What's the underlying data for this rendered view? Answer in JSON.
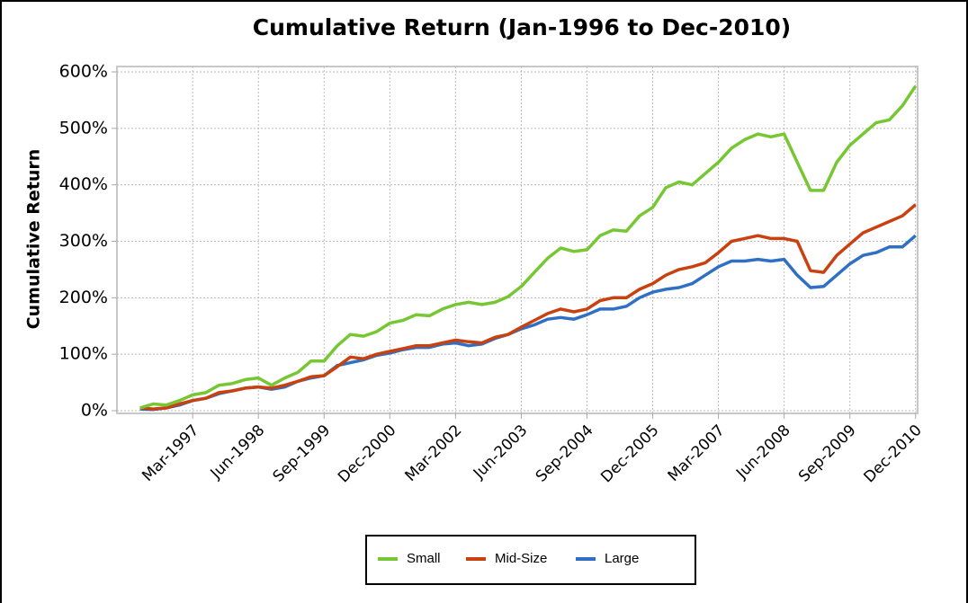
{
  "chart_data": {
    "type": "line",
    "title": "Cumulative Return (Jan-1996 to Dec-2010)",
    "y_label": "Cumulative Return",
    "x": [
      "Mar-1996",
      "Jun-1996",
      "Sep-1996",
      "Dec-1996",
      "Mar-1997",
      "Jun-1997",
      "Sep-1997",
      "Dec-1997",
      "Mar-1998",
      "Jun-1998",
      "Sep-1998",
      "Dec-1998",
      "Mar-1999",
      "Jun-1999",
      "Sep-1999",
      "Dec-1999",
      "Mar-2000",
      "Jun-2000",
      "Sep-2000",
      "Dec-2000",
      "Mar-2001",
      "Jun-2001",
      "Sep-2001",
      "Dec-2001",
      "Mar-2002",
      "Jun-2002",
      "Sep-2002",
      "Dec-2002",
      "Mar-2003",
      "Jun-2003",
      "Sep-2003",
      "Dec-2003",
      "Mar-2004",
      "Jun-2004",
      "Sep-2004",
      "Dec-2004",
      "Mar-2005",
      "Jun-2005",
      "Sep-2005",
      "Dec-2005",
      "Mar-2006",
      "Jun-2006",
      "Sep-2006",
      "Dec-2006",
      "Mar-2007",
      "Jun-2007",
      "Sep-2007",
      "Dec-2007",
      "Mar-2008",
      "Jun-2008",
      "Sep-2008",
      "Dec-2008",
      "Mar-2009",
      "Jun-2009",
      "Sep-2009",
      "Dec-2009",
      "Mar-2010",
      "Jun-2010",
      "Sep-2010",
      "Dec-2010"
    ],
    "xticks": [
      "Mar-1997",
      "Jun-1998",
      "Sep-1999",
      "Dec-2000",
      "Mar-2002",
      "Jun-2003",
      "Sep-2004",
      "Dec-2005",
      "Mar-2007",
      "Jun-2008",
      "Sep-2009",
      "Dec-2010"
    ],
    "series": [
      {
        "name": "Small",
        "color": "#76c733",
        "values": [
          5,
          12,
          10,
          18,
          28,
          32,
          45,
          48,
          55,
          58,
          45,
          58,
          68,
          88,
          88,
          115,
          135,
          132,
          140,
          155,
          160,
          170,
          168,
          180,
          188,
          192,
          188,
          192,
          202,
          220,
          245,
          270,
          288,
          282,
          285,
          310,
          320,
          318,
          345,
          360,
          395,
          405,
          400,
          420,
          440,
          465,
          480,
          490,
          485,
          490,
          440,
          390,
          390,
          440,
          470,
          490,
          510,
          515,
          540,
          575
        ]
      },
      {
        "name": "Mid-Size",
        "color": "#c8410f",
        "values": [
          5,
          3,
          5,
          12,
          18,
          22,
          32,
          35,
          40,
          42,
          40,
          45,
          52,
          60,
          62,
          78,
          95,
          92,
          100,
          105,
          110,
          115,
          115,
          120,
          125,
          122,
          120,
          130,
          135,
          148,
          160,
          172,
          180,
          175,
          180,
          195,
          200,
          200,
          215,
          225,
          240,
          250,
          255,
          262,
          280,
          300,
          305,
          310,
          305,
          305,
          300,
          248,
          245,
          275,
          295,
          315,
          325,
          335,
          345,
          365
        ]
      },
      {
        "name": "Large",
        "color": "#2f6fc4",
        "values": [
          3,
          2,
          5,
          10,
          18,
          22,
          30,
          35,
          40,
          42,
          38,
          42,
          52,
          58,
          62,
          80,
          85,
          90,
          98,
          102,
          108,
          112,
          112,
          118,
          120,
          115,
          118,
          128,
          135,
          145,
          152,
          162,
          165,
          162,
          170,
          180,
          180,
          185,
          200,
          210,
          215,
          218,
          225,
          240,
          255,
          265,
          265,
          268,
          265,
          268,
          240,
          218,
          220,
          240,
          260,
          275,
          280,
          290,
          290,
          310
        ]
      }
    ],
    "ylim": [
      0,
      600
    ],
    "yticks": [
      {
        "value": 0,
        "label": "0%"
      },
      {
        "value": 100,
        "label": "100%"
      },
      {
        "value": 200,
        "label": "200%"
      },
      {
        "value": 300,
        "label": "300%"
      },
      {
        "value": 400,
        "label": "400%"
      },
      {
        "value": 500,
        "label": "500%"
      },
      {
        "value": 600,
        "label": "600%"
      }
    ],
    "grid": true
  }
}
